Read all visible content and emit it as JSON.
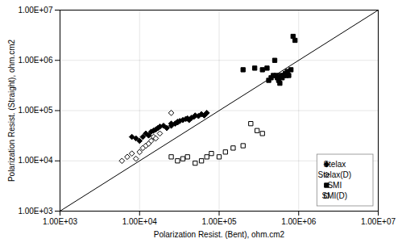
{
  "chart_data": {
    "type": "scatter",
    "xlabel": "Polarization Resist. (Bent), ohm.cm2",
    "ylabel": "Polarization Resist. (Straight), ohm.cm2",
    "log": true,
    "xlim": [
      1000,
      10000000
    ],
    "ylim": [
      1000,
      10000000
    ],
    "xticks": [
      {
        "value": 1000,
        "label": "1.00E+03"
      },
      {
        "value": 10000,
        "label": "1.00E+04"
      },
      {
        "value": 100000,
        "label": "1.00E+05"
      },
      {
        "value": 1000000,
        "label": "1.00E+06"
      },
      {
        "value": 10000000,
        "label": "1.00E+07"
      }
    ],
    "yticks": [
      {
        "value": 1000,
        "label": "1.00E+03"
      },
      {
        "value": 10000,
        "label": "1.00E+04"
      },
      {
        "value": 100000,
        "label": "1.00E+05"
      },
      {
        "value": 1000000,
        "label": "1.00E+06"
      },
      {
        "value": 10000000,
        "label": "1.00E+07"
      }
    ],
    "grid": true,
    "legend": "lower right",
    "series": [
      {
        "type": "line",
        "color": "black",
        "x": [
          1000,
          10000000
        ],
        "values": [
          1000,
          10000000
        ]
      },
      {
        "name": "Stelax",
        "type": "scatter",
        "color": "black",
        "marker": "diamond",
        "x": [
          8000,
          9000,
          10000,
          11000,
          12000,
          13000,
          14000,
          15000,
          16000,
          17000,
          18000,
          20000,
          22000,
          25000,
          25000,
          28000,
          30000,
          30000,
          32000,
          35000,
          38000,
          40000,
          42000,
          45000,
          48000,
          50000,
          55000,
          60000,
          65000,
          70000
        ],
        "values": [
          30000,
          28000,
          25000,
          30000,
          35000,
          32000,
          38000,
          40000,
          42000,
          45000,
          48000,
          50000,
          45000,
          50000,
          55000,
          55000,
          60000,
          58000,
          62000,
          65000,
          68000,
          70000,
          65000,
          72000,
          75000,
          80000,
          78000,
          85000,
          80000,
          90000
        ]
      },
      {
        "name": "Stelax(D)",
        "type": "scatter",
        "color": "black",
        "marker": "diamond-open",
        "x": [
          6000,
          7000,
          8000,
          9000,
          10000,
          11000,
          12000,
          13000,
          14000,
          15000,
          16000,
          18000,
          25000
        ],
        "values": [
          10000,
          12000,
          14000,
          11000,
          15000,
          18000,
          20000,
          22000,
          25000,
          30000,
          28000,
          35000,
          90000
        ]
      },
      {
        "name": "SMI",
        "type": "scatter",
        "color": "black",
        "marker": "square",
        "x": [
          200000,
          280000,
          350000,
          400000,
          420000,
          450000,
          480000,
          500000,
          520000,
          540000,
          560000,
          580000,
          600000,
          620000,
          650000,
          680000,
          700000,
          720000,
          750000,
          800000,
          850000,
          900000
        ],
        "values": [
          650000,
          700000,
          650000,
          700000,
          400000,
          450000,
          500000,
          1000000,
          500000,
          450000,
          400000,
          350000,
          500000,
          450000,
          500000,
          550000,
          500000,
          600000,
          500000,
          650000,
          3000000,
          2500000
        ]
      },
      {
        "name": "SMI(D)",
        "type": "scatter",
        "color": "black",
        "marker": "square-open",
        "x": [
          25000,
          30000,
          35000,
          40000,
          50000,
          60000,
          70000,
          80000,
          100000,
          120000,
          150000,
          200000,
          250000,
          300000,
          350000
        ],
        "values": [
          12000,
          10000,
          11000,
          12000,
          9000,
          10000,
          12000,
          14000,
          12000,
          15000,
          18000,
          20000,
          55000,
          40000,
          35000
        ]
      }
    ]
  }
}
